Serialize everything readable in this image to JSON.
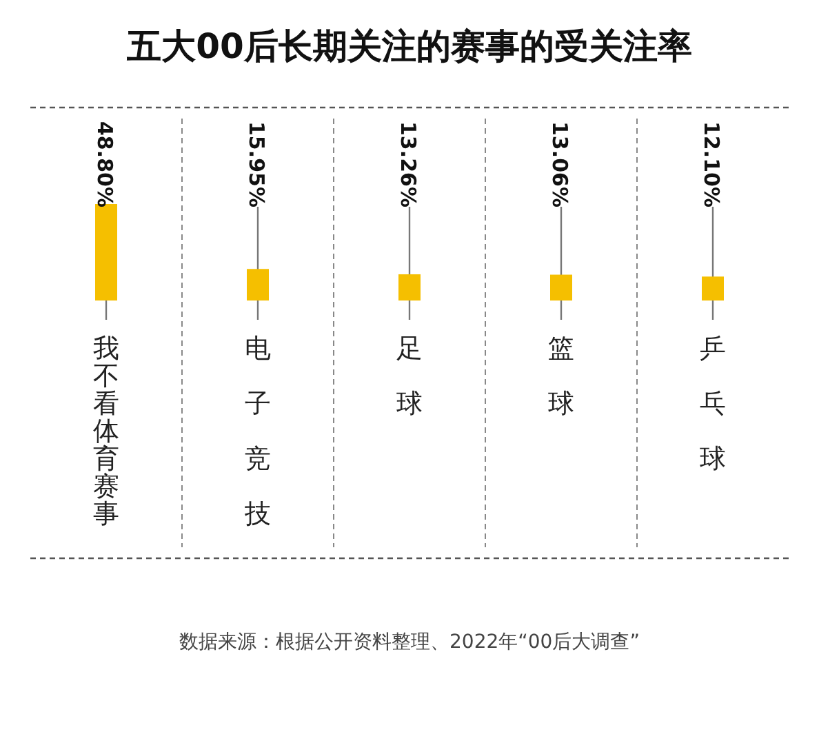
{
  "chart_data": {
    "type": "bar",
    "title": "五大00后长期关注的赛事的受关注率",
    "categories": [
      "我不看体育赛事",
      "电子竞技",
      "足球",
      "篮球",
      "乒乓球"
    ],
    "values": [
      48.8,
      15.95,
      13.26,
      13.06,
      12.1
    ],
    "value_labels": [
      "48.80%",
      "15.95%",
      "13.26%",
      "13.06%",
      "12.10%"
    ],
    "color": "#f5bf00",
    "grid": "x",
    "annotations": [
      "数据来源：根据公开资料整理、2022年“00后大调查”"
    ]
  }
}
